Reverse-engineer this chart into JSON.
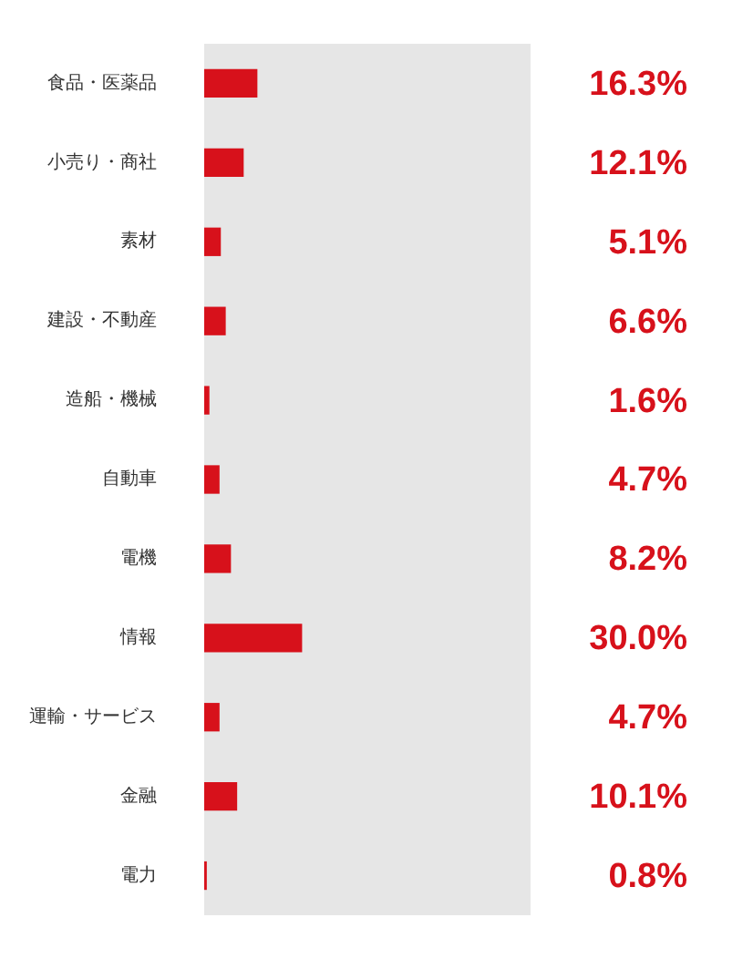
{
  "chart_data": {
    "type": "bar",
    "orientation": "horizontal",
    "categories": [
      "食品・医薬品",
      "小売り・商社",
      "素材",
      "建設・不動産",
      "造船・機械",
      "自動車",
      "電機",
      "情報",
      "運輸・サービス",
      "金融",
      "電力"
    ],
    "values": [
      16.3,
      12.1,
      5.1,
      6.6,
      1.6,
      4.7,
      8.2,
      30.0,
      4.7,
      10.1,
      0.8
    ],
    "value_labels": [
      "16.3%",
      "12.1%",
      "5.1%",
      "6.6%",
      "1.6%",
      "4.7%",
      "8.2%",
      "30.0%",
      "4.7%",
      "10.1%",
      "0.8%"
    ],
    "color": "#d7111b",
    "xlim": [
      0,
      100
    ],
    "bands": [
      {
        "axis": "x",
        "from": 0,
        "to": 100,
        "color": "#e6e6e6"
      }
    ],
    "tick_labels": "y"
  }
}
